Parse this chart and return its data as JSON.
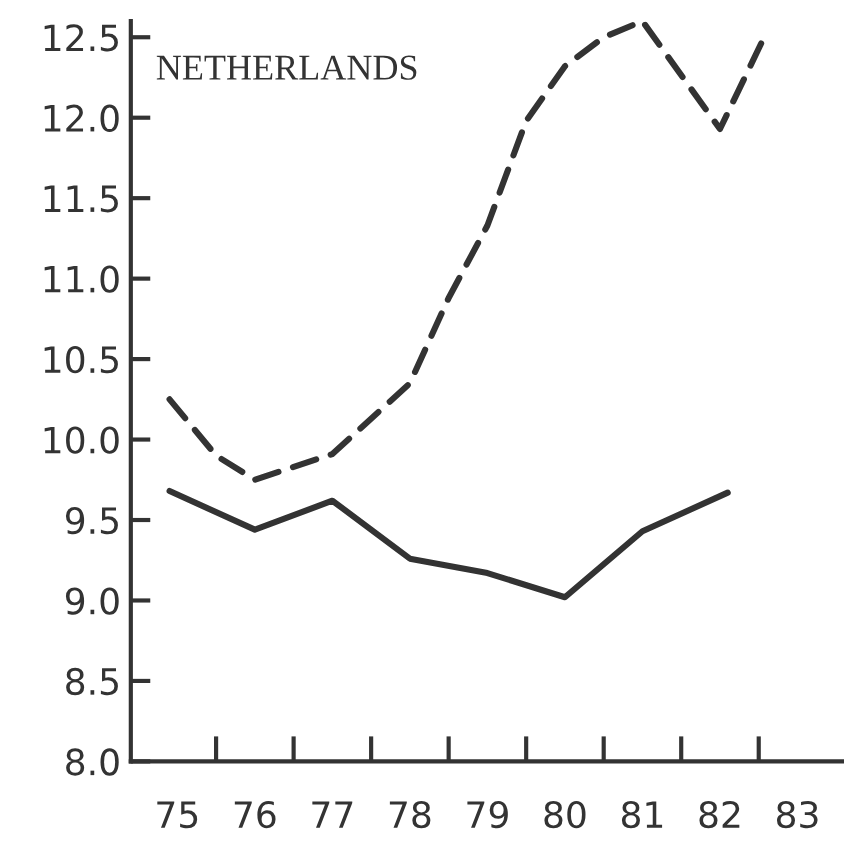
{
  "chart_data": {
    "type": "line",
    "annotations": [
      "NETHERLANDS"
    ],
    "xlim": [
      74.4,
      83.6
    ],
    "ylim": [
      8.0,
      12.6
    ],
    "xticks": [
      {
        "value": 75,
        "label": "75"
      },
      {
        "value": 76,
        "label": "76"
      },
      {
        "value": 77,
        "label": "77"
      },
      {
        "value": 78,
        "label": "78"
      },
      {
        "value": 79,
        "label": "79"
      },
      {
        "value": 80,
        "label": "80"
      },
      {
        "value": 81,
        "label": "81"
      },
      {
        "value": 82,
        "label": "82"
      },
      {
        "value": 83,
        "label": "83"
      },
      {
        "value": 75.5,
        "label": null
      },
      {
        "value": 76.5,
        "label": null
      },
      {
        "value": 77.5,
        "label": null
      },
      {
        "value": 78.5,
        "label": null
      },
      {
        "value": 79.5,
        "label": null
      },
      {
        "value": 80.5,
        "label": null
      },
      {
        "value": 81.5,
        "label": null
      },
      {
        "value": 82.5,
        "label": null
      }
    ],
    "yticks": [
      {
        "value": 8.0,
        "label": "8.0"
      },
      {
        "value": 8.5,
        "label": "8.5"
      },
      {
        "value": 9.0,
        "label": "9.0"
      },
      {
        "value": 9.5,
        "label": "9.5"
      },
      {
        "value": 10.0,
        "label": "10.0"
      },
      {
        "value": 10.5,
        "label": "10.5"
      },
      {
        "value": 11.0,
        "label": "11.0"
      },
      {
        "value": 11.5,
        "label": "11.5"
      },
      {
        "value": 12.0,
        "label": "12.0"
      },
      {
        "value": 12.5,
        "label": "12.5"
      }
    ],
    "grid": false,
    "legend": false,
    "marker": "none",
    "series": [
      {
        "color": "#333333",
        "line_style": "solid",
        "x": [
          74.9,
          76,
          77,
          78,
          79,
          80,
          81,
          82.1
        ],
        "values": [
          9.68,
          9.44,
          9.62,
          9.26,
          9.17,
          9.02,
          9.43,
          9.67
        ]
      },
      {
        "color": "#333333",
        "line_style": "dashed",
        "x": [
          74.9,
          75.5,
          76,
          77,
          78,
          78.5,
          79,
          79.5,
          80,
          80.5,
          81,
          82,
          82.6
        ],
        "values": [
          10.25,
          9.9,
          9.75,
          9.91,
          10.35,
          10.88,
          11.33,
          11.98,
          12.32,
          12.5,
          12.6,
          11.93,
          12.53
        ]
      }
    ]
  }
}
